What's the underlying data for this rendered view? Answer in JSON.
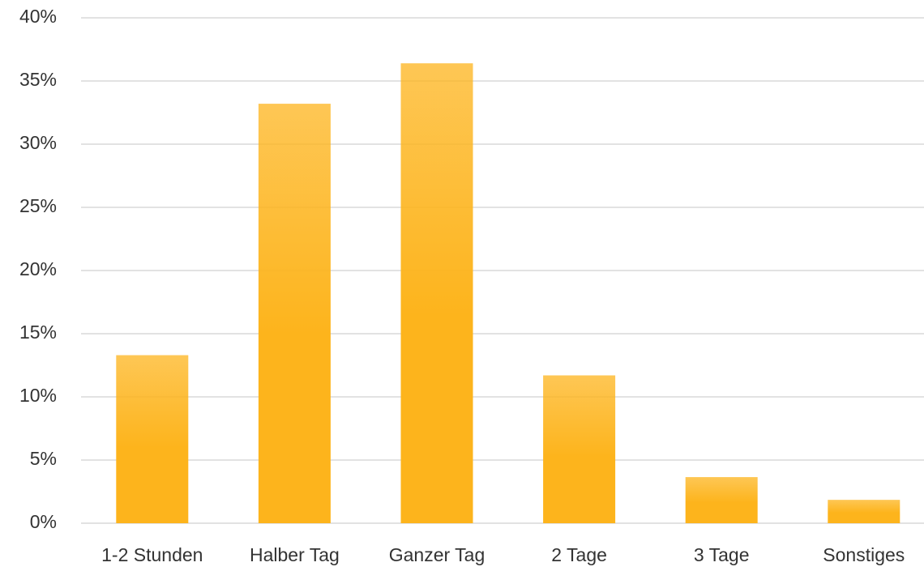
{
  "chart_data": {
    "type": "bar",
    "categories": [
      "1-2 Stunden",
      "Halber Tag",
      "Ganzer Tag",
      "2 Tage",
      "3 Tage",
      "Sonstiges"
    ],
    "values": [
      13.3,
      33.2,
      36.4,
      11.7,
      3.65,
      1.85
    ],
    "color": "#fdb41c",
    "ylim": [
      0,
      40
    ],
    "yticks": [
      {
        "value": 0,
        "label": "0%"
      },
      {
        "value": 5,
        "label": "5%"
      },
      {
        "value": 10,
        "label": "10%"
      },
      {
        "value": 15,
        "label": "15%"
      },
      {
        "value": 20,
        "label": "20%"
      },
      {
        "value": 25,
        "label": "25%"
      },
      {
        "value": 30,
        "label": "30%"
      },
      {
        "value": 35,
        "label": "35%"
      },
      {
        "value": 40,
        "label": "40%"
      }
    ],
    "grid": true
  }
}
